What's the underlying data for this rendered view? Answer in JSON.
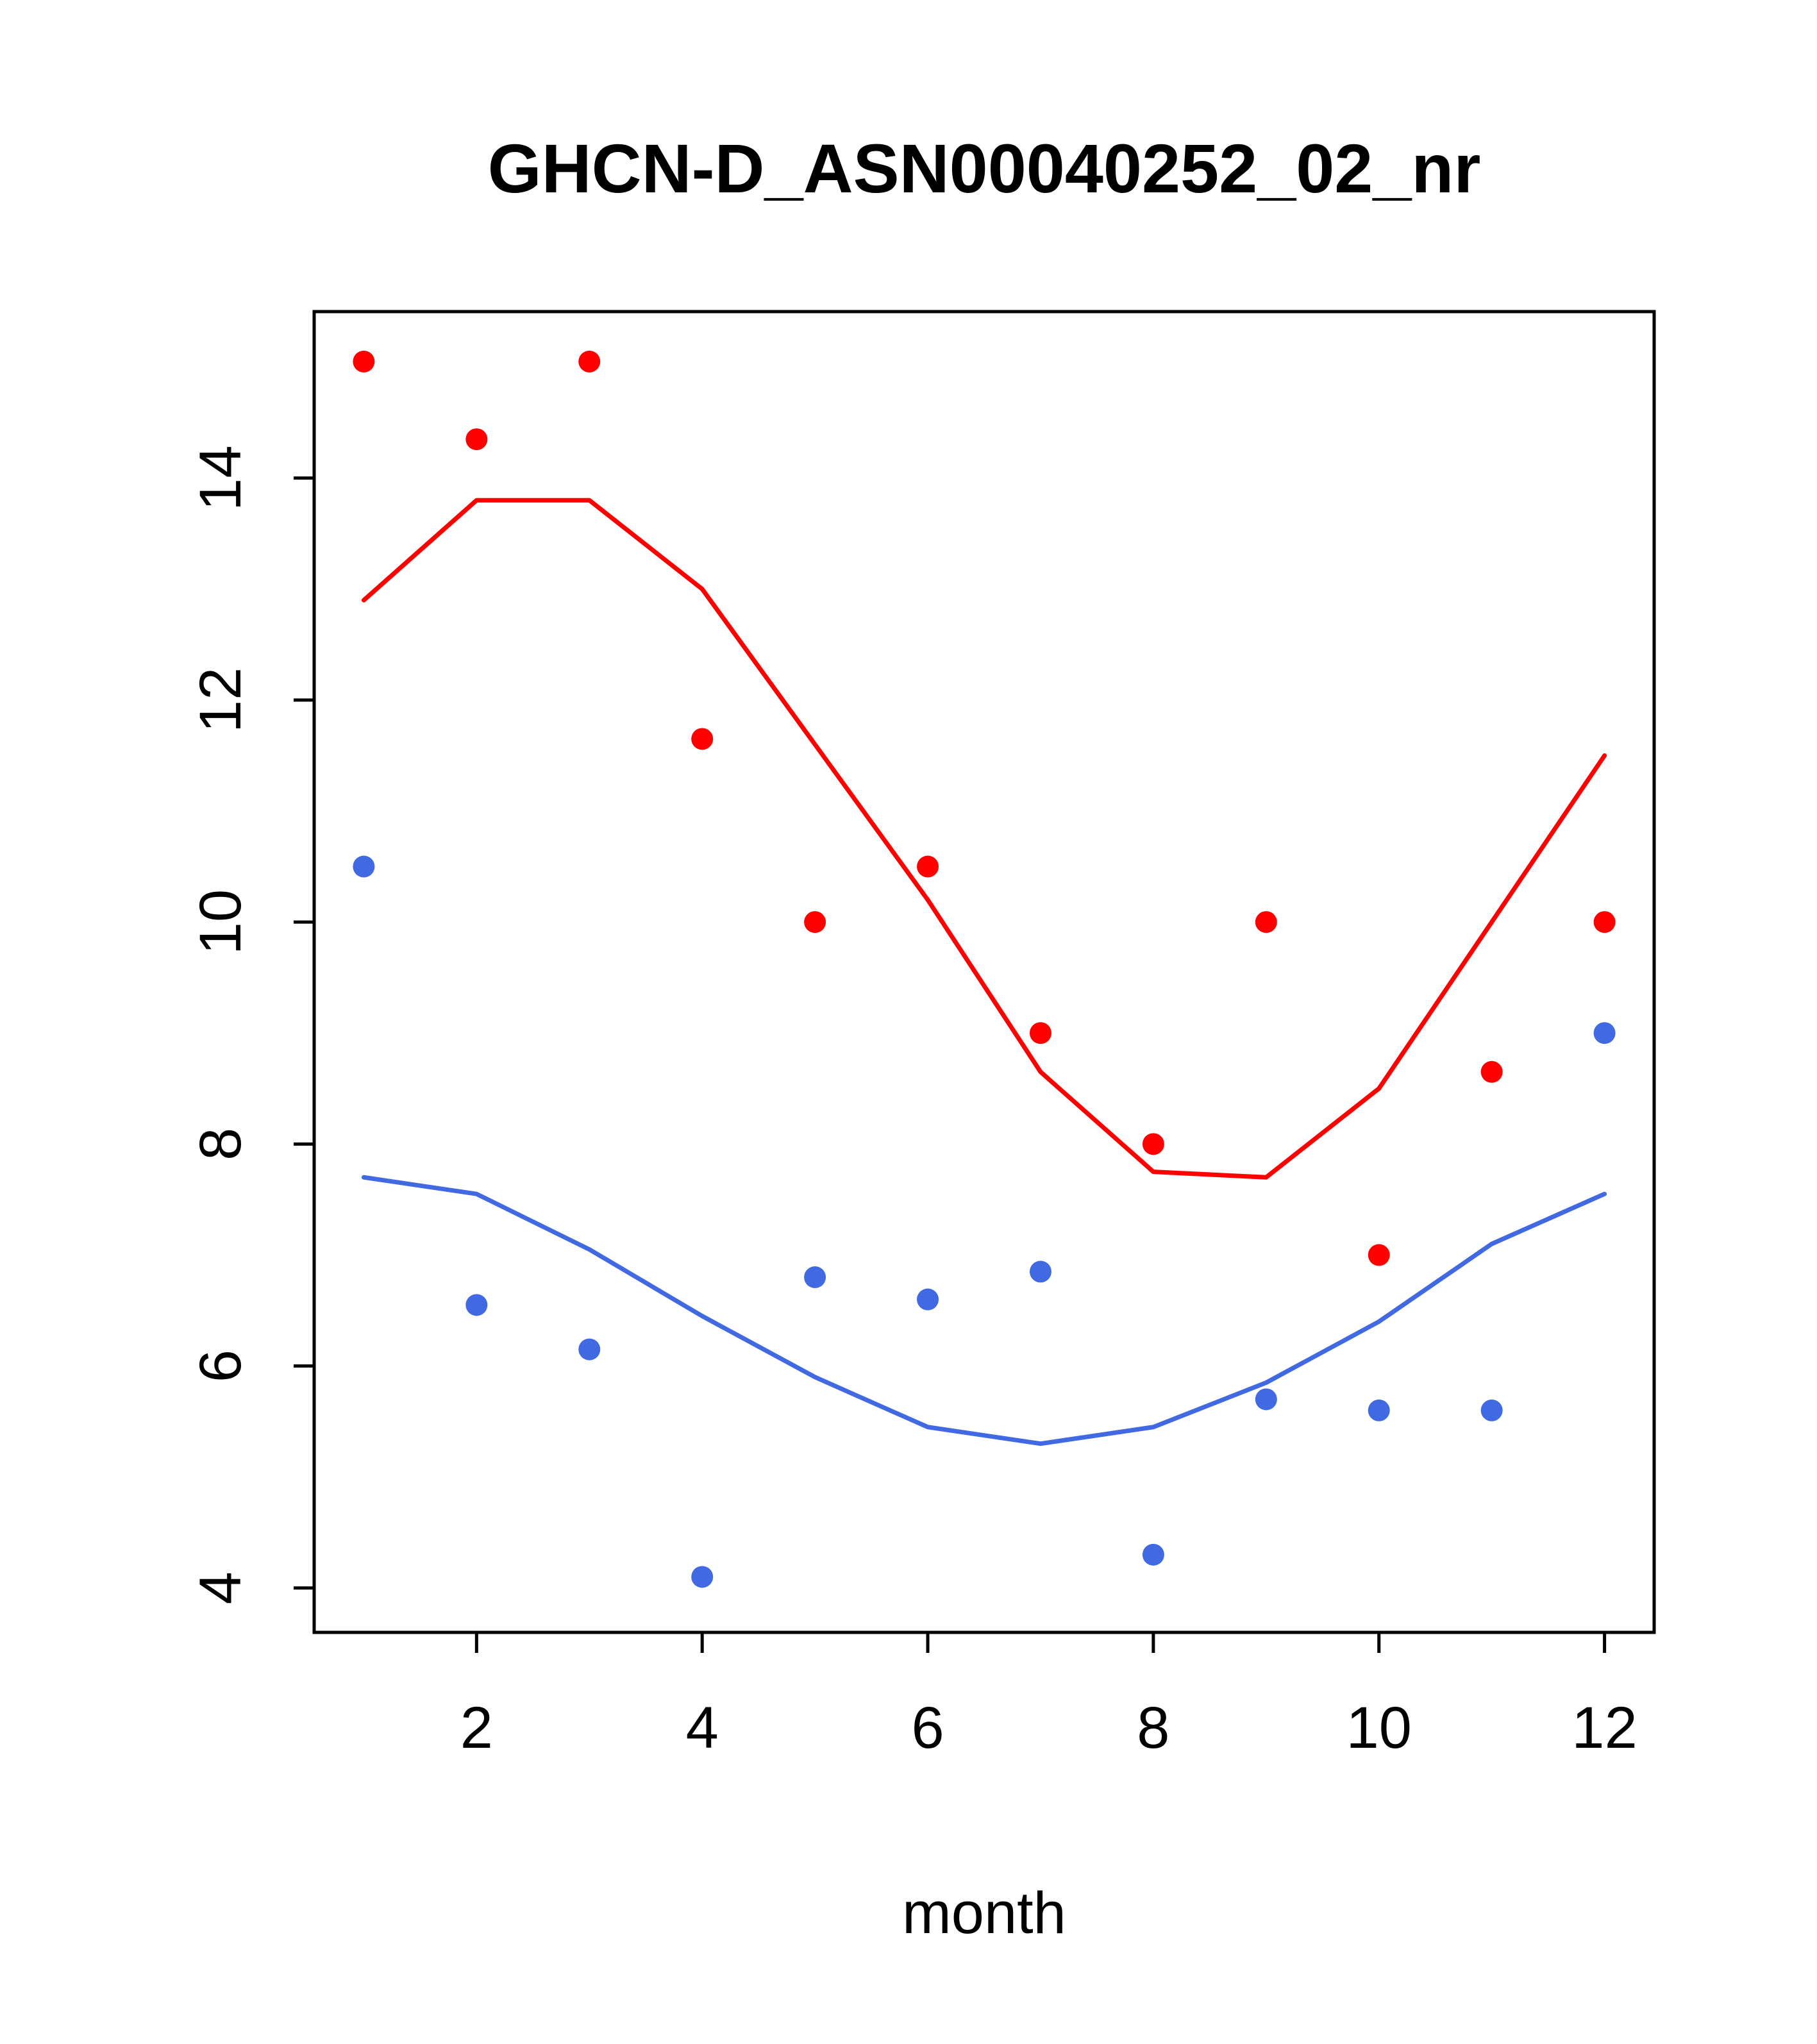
{
  "page": {
    "background": "#ffffff"
  },
  "chart_data": {
    "type": "scatter",
    "title": "GHCN-D_ASN00040252_02_nr",
    "xlabel": "month",
    "ylabel": "",
    "xlim": [
      0.56,
      12.44
    ],
    "ylim": [
      3.6,
      15.5
    ],
    "x_ticks": [
      2,
      4,
      6,
      8,
      10,
      12
    ],
    "y_ticks": [
      4,
      6,
      8,
      10,
      12,
      14
    ],
    "grid": false,
    "legend": false,
    "x": [
      1,
      2,
      3,
      4,
      5,
      6,
      7,
      8,
      9,
      10,
      11,
      12
    ],
    "series": [
      {
        "name": "red-points",
        "kind": "points",
        "color": "#ff0000",
        "values": [
          15.05,
          14.35,
          15.05,
          11.65,
          10.0,
          10.5,
          9.0,
          8.0,
          10.0,
          7.0,
          8.65,
          10.0
        ]
      },
      {
        "name": "red-trend-line",
        "kind": "line",
        "color": "#ff0000",
        "values": [
          12.9,
          13.8,
          13.8,
          13.0,
          11.6,
          10.2,
          8.65,
          7.75,
          7.7,
          8.5,
          10.0,
          11.5
        ]
      },
      {
        "name": "blue-points",
        "kind": "points",
        "color": "#4169e1",
        "values": [
          10.5,
          6.55,
          6.15,
          4.1,
          6.8,
          6.6,
          6.85,
          4.3,
          5.7,
          5.6,
          5.6,
          9.0
        ]
      },
      {
        "name": "blue-trend-line",
        "kind": "line",
        "color": "#4169e1",
        "values": [
          7.7,
          7.55,
          7.05,
          6.45,
          5.9,
          5.45,
          5.3,
          5.45,
          5.85,
          6.4,
          7.1,
          7.55
        ]
      }
    ]
  }
}
